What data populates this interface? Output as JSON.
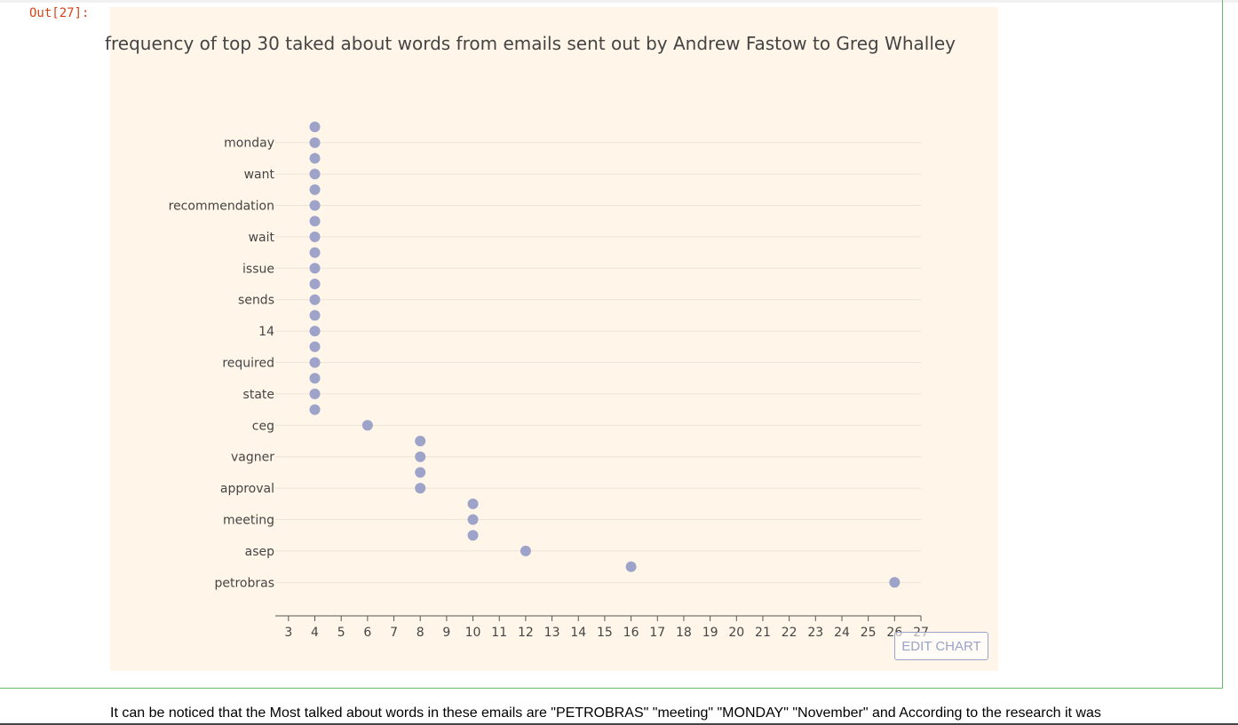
{
  "output": {
    "prompt": "Out[27]:"
  },
  "edit_chart_label": "EDIT CHART",
  "markdown_text": "It can be noticed that the Most talked about words in these emails are \"PETROBRAS\" \"meeting\" \"MONDAY\" \"November\" and According to the research it was",
  "colors": {
    "marker": "#9ea3c9",
    "plot_bg": "#fff6e9",
    "grid": "#ece4d6",
    "prompt": "#d84315",
    "cell_border": "#66bb6a"
  },
  "chart_data": {
    "type": "scatter",
    "title": "frequency of top 30 taked about words from emails sent out by Andrew Fastow to Greg Whalley",
    "xlabel": "",
    "ylabel": "",
    "xlim": [
      2.5,
      27.0
    ],
    "x_ticks": [
      3,
      4,
      5,
      6,
      7,
      8,
      9,
      10,
      11,
      12,
      13,
      14,
      15,
      16,
      17,
      18,
      19,
      20,
      21,
      22,
      23,
      24,
      25,
      26,
      27
    ],
    "grid": "horizontal",
    "marker_color": "#9ea3c9",
    "y_tick_labels": [
      "monday",
      "want",
      "recommendation",
      "wait",
      "issue",
      "sends",
      "14",
      "required",
      "state",
      "ceg",
      "vagner",
      "approval",
      "meeting",
      "asep",
      "petrobras"
    ],
    "values": [
      4,
      4,
      4,
      4,
      4,
      4,
      4,
      4,
      4,
      4,
      4,
      4,
      4,
      4,
      4,
      4,
      4,
      4,
      4,
      6,
      8,
      8,
      8,
      8,
      10,
      10,
      10,
      12,
      16,
      26
    ]
  }
}
